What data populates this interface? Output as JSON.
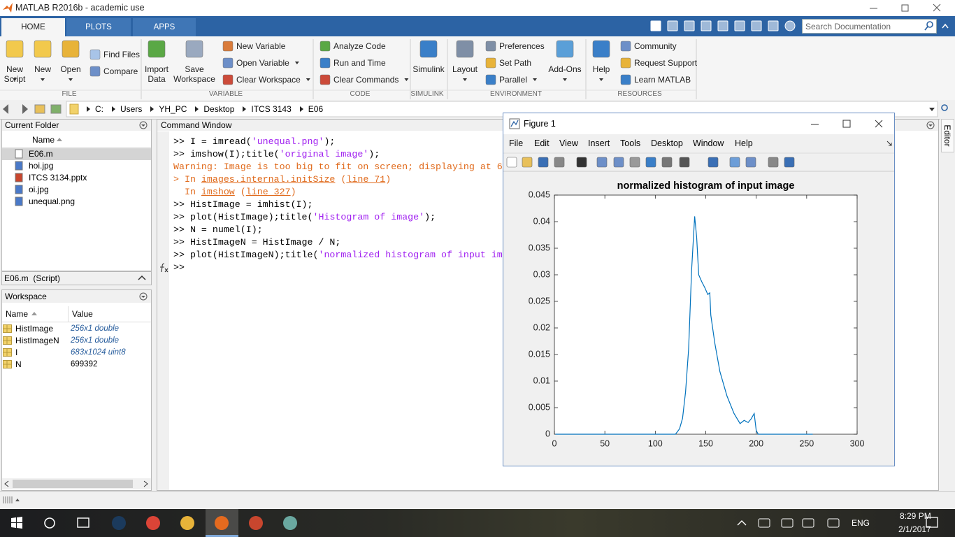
{
  "window": {
    "title": "MATLAB R2016b - academic use"
  },
  "tabs": [
    "HOME",
    "PLOTS",
    "APPS"
  ],
  "search": {
    "placeholder": "Search Documentation"
  },
  "ribbon": {
    "groups": [
      "FILE",
      "VARIABLE",
      "CODE",
      "SIMULINK",
      "ENVIRONMENT",
      "RESOURCES"
    ],
    "buttons": [
      "New Script",
      "New",
      "Open",
      "Find Files",
      "Compare",
      "Import Data",
      "Save Workspace",
      "New Variable",
      "Open Variable",
      "Clear Workspace",
      "Analyze Code",
      "Run and Time",
      "Clear Commands",
      "Simulink",
      "Layout",
      "Preferences",
      "Set Path",
      "Parallel",
      "Add-Ons",
      "Help",
      "Community",
      "Request Support",
      "Learn MATLAB"
    ]
  },
  "address": [
    "C:",
    "Users",
    "YH_PC",
    "Desktop",
    "ITCS 3143",
    "E06"
  ],
  "current_folder": {
    "title": "Current Folder",
    "column": "Name",
    "files": [
      "E06.m",
      "hoi.jpg",
      "ITCS 3134.pptx",
      "oi.jpg",
      "unequal.png"
    ],
    "details": "E06.m  (Script)"
  },
  "workspace": {
    "title": "Workspace",
    "columns": [
      "Name",
      "Value"
    ],
    "rows": [
      [
        "HistImage",
        "256x1 double"
      ],
      [
        "HistImageN",
        "256x1 double"
      ],
      [
        "I",
        "683x1024 uint8"
      ],
      [
        "N",
        "699392"
      ]
    ]
  },
  "command": {
    "title": "Command Window",
    "lines": [
      [
        {
          "text": ">> I = imread(",
          "color": "#000000"
        },
        {
          "text": "'unequal.png'",
          "color": "#a020f0"
        },
        {
          "text": ");",
          "color": "#000000"
        }
      ],
      [
        {
          "text": ">> imshow(I);title(",
          "color": "#000000"
        },
        {
          "text": "'original image'",
          "color": "#a020f0"
        },
        {
          "text": ");",
          "color": "#000000"
        }
      ],
      [
        {
          "text": "Warning: Image is too big to fit on screen; displaying at 6",
          "color": "#e0691a"
        }
      ],
      [
        {
          "text": "> In ",
          "color": "#e0691a"
        },
        {
          "text": "images.internal.initSize",
          "color": "#e0691a",
          "link": true
        },
        {
          "text": " (",
          "color": "#e0691a"
        },
        {
          "text": "line 71",
          "color": "#e0691a",
          "link": true
        },
        {
          "text": ")",
          "color": "#e0691a"
        }
      ],
      [
        {
          "text": "  In ",
          "color": "#e0691a"
        },
        {
          "text": "imshow",
          "color": "#e0691a",
          "link": true
        },
        {
          "text": " (",
          "color": "#e0691a"
        },
        {
          "text": "line 327",
          "color": "#e0691a",
          "link": true
        },
        {
          "text": ")",
          "color": "#e0691a"
        }
      ],
      [
        {
          "text": ">> HistImage = imhist(I);",
          "color": "#000000"
        }
      ],
      [
        {
          "text": ">> plot(HistImage);title(",
          "color": "#000000"
        },
        {
          "text": "'Histogram of image'",
          "color": "#a020f0"
        },
        {
          "text": ");",
          "color": "#000000"
        }
      ],
      [
        {
          "text": ">> N = numel(I);",
          "color": "#000000"
        }
      ],
      [
        {
          "text": ">> HistImageN = HistImage / N;",
          "color": "#000000"
        }
      ],
      [
        {
          "text": ">> plot(HistImageN);title(",
          "color": "#000000"
        },
        {
          "text": "'normalized histogram of input im",
          "color": "#a020f0"
        }
      ],
      [
        {
          "text": ">>",
          "color": "#000000"
        }
      ]
    ]
  },
  "editor_tab": "Editor",
  "figure": {
    "title": "Figure 1",
    "menu": [
      "File",
      "Edit",
      "View",
      "Insert",
      "Tools",
      "Desktop",
      "Window",
      "Help"
    ]
  },
  "chart_data": {
    "type": "line",
    "title": "normalized histogram of input image",
    "color": "#0072bd",
    "x": [
      1,
      120,
      124,
      127,
      130,
      133,
      136,
      139,
      141,
      143,
      146,
      149,
      152,
      154,
      155,
      159,
      164,
      171,
      178,
      184,
      188,
      192,
      195,
      198,
      200,
      202,
      256
    ],
    "values": [
      0,
      0,
      0.001,
      0.003,
      0.008,
      0.016,
      0.031,
      0.041,
      0.037,
      0.03,
      0.0287,
      0.0276,
      0.0263,
      0.0266,
      0.0224,
      0.0171,
      0.0118,
      0.0072,
      0.0039,
      0.002,
      0.0026,
      0.0022,
      0.0029,
      0.0039,
      0.0007,
      0,
      0
    ],
    "xlim": [
      0,
      300
    ],
    "xticks": [
      0,
      50,
      100,
      150,
      200,
      250,
      300
    ],
    "ylim": [
      0,
      0.045
    ],
    "yticks": [
      0,
      0.005,
      0.01,
      0.015,
      0.02,
      0.025,
      0.03,
      0.035,
      0.04,
      0.045
    ]
  },
  "taskbar": {
    "language": "ENG",
    "time": "8:29 PM",
    "date": "2/1/2017"
  }
}
